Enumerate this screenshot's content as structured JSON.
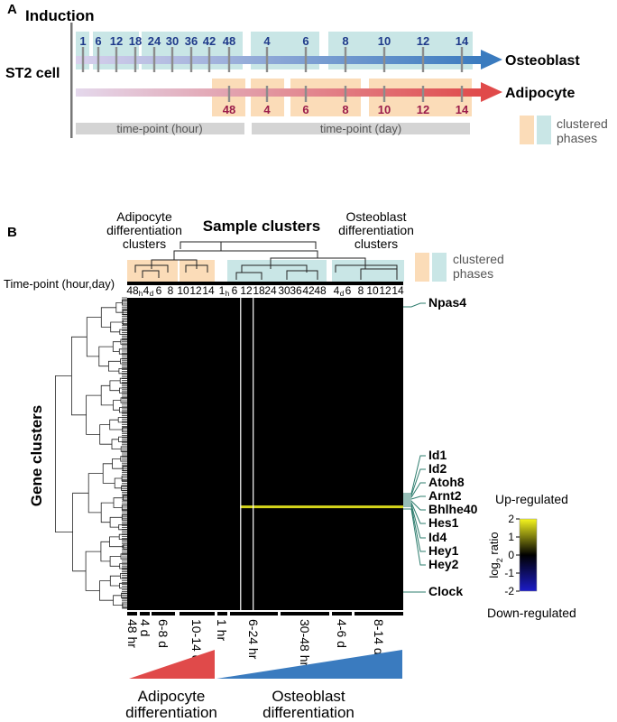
{
  "panel_a": {
    "letter": "A",
    "induction_label": "Induction",
    "cell_label": "ST2 cell",
    "osteoblast_label": "Osteoblast",
    "adipocyte_label": "Adipocyte",
    "osteo_hour_ticks": [
      "1",
      "6",
      "12",
      "18",
      "24",
      "30",
      "36",
      "42",
      "48"
    ],
    "osteo_day_ticks": [
      "4",
      "6",
      "8",
      "10",
      "12",
      "14"
    ],
    "adipo_ticks": [
      "48",
      "4",
      "6",
      "8",
      "10",
      "12",
      "14"
    ],
    "hour_bar_label": "time-point (hour)",
    "day_bar_label": "time-point (day)",
    "legend_line1": "clustered",
    "legend_line2": "phases",
    "colors": {
      "teal_phase": "#c9e6e6",
      "orange_phase": "#fbdcb8",
      "osteo_arrow": "#3a7bbf",
      "adipo_arrow": "#e04a4a",
      "hour_text": "#1f3a8a",
      "adipo_text": "#9b1c4a",
      "gray_bar": "#d4d4d4"
    }
  },
  "panel_b": {
    "letter": "B",
    "sample_clusters_title": "Sample clusters",
    "adipo_clusters_l1": "Adipocyte",
    "adipo_clusters_l2": "differentiation",
    "adipo_clusters_l3": "clusters",
    "osteo_clusters_l1": "Osteoblast",
    "osteo_clusters_l2": "differentiation",
    "osteo_clusters_l3": "clusters",
    "legend_line1": "clustered",
    "legend_line2": "phases",
    "timepoint_label": "Time-point (hour,day)",
    "column_labels": [
      "48",
      "h",
      "4",
      "d",
      "6",
      "8",
      "10",
      "12",
      "14",
      "1",
      "h",
      "6",
      "12",
      "18",
      "24",
      "30",
      "36",
      "42",
      "48",
      "4",
      "d",
      "6",
      "8",
      "10",
      "12",
      "14"
    ],
    "gene_clusters_label": "Gene clusters",
    "genes": [
      "Npas4",
      "Id1",
      "Id2",
      "Atoh8",
      "Arnt2",
      "Bhlhe40",
      "Hes1",
      "Id4",
      "Hey1",
      "Hey2",
      "Clock"
    ],
    "bottom_labels": [
      "48 hr",
      "4 d",
      "6-8 d",
      "10-14 d",
      "1 hr",
      "6-24 hr",
      "30-48 hr",
      "4-6 d",
      "8-14 d"
    ],
    "adipo_diff_l1": "Adipocyte",
    "adipo_diff_l2": "differentiation",
    "osteo_diff_l1": "Osteoblast",
    "osteo_diff_l2": "differentiation",
    "colorbar": {
      "up_label": "Up-regulated",
      "down_label": "Down-regulated",
      "axis_label": "log2 ratio",
      "ticks": [
        "2",
        "1",
        "0",
        "-1",
        "-2"
      ],
      "colors": [
        "#f5f51e",
        "#000000",
        "#1c1cc8"
      ]
    }
  }
}
